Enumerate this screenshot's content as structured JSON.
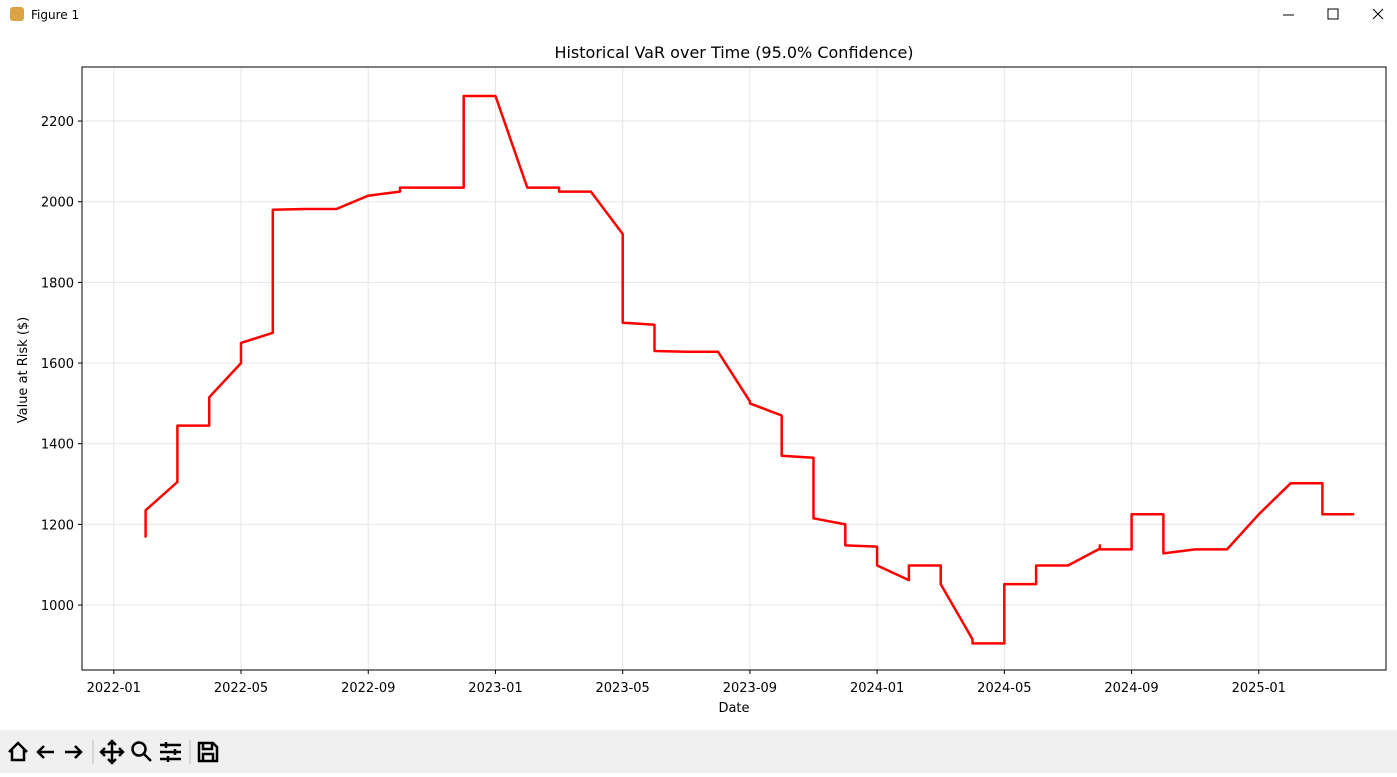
{
  "window": {
    "title": "Figure 1"
  },
  "chart_data": {
    "type": "line",
    "title": "Historical VaR over Time (95.0% Confidence)",
    "x_label": "Date",
    "y_label": "Value at Risk ($)",
    "color": "#ff0000",
    "grid": true,
    "x": [
      "2022-02",
      "2022-02",
      "2022-02",
      "2022-02",
      "2022-03",
      "2022-03",
      "2022-03",
      "2022-04",
      "2022-04",
      "2022-05",
      "2022-05",
      "2022-06",
      "2022-06",
      "2022-06",
      "2022-07",
      "2022-08",
      "2022-09",
      "2022-10",
      "2022-10",
      "2022-11",
      "2022-12",
      "2022-12",
      "2023-01",
      "2023-02",
      "2023-03",
      "2023-03",
      "2023-04",
      "2023-05",
      "2023-05",
      "2023-05",
      "2023-05",
      "2023-06",
      "2023-06",
      "2023-06",
      "2023-07",
      "2023-08",
      "2023-09",
      "2023-09",
      "2023-10",
      "2023-10",
      "2023-10",
      "2023-10",
      "2023-11",
      "2023-11",
      "2023-11",
      "2023-12",
      "2023-12",
      "2023-12",
      "2024-01",
      "2024-01",
      "2024-02",
      "2024-02",
      "2024-03",
      "2024-03",
      "2024-04",
      "2024-04",
      "2024-05",
      "2024-05",
      "2024-05",
      "2024-05",
      "2024-06",
      "2024-06",
      "2024-07",
      "2024-08",
      "2024-08",
      "2024-08",
      "2024-09",
      "2024-09",
      "2024-10",
      "2024-10",
      "2024-10",
      "2024-11",
      "2024-12",
      "2025-01",
      "2025-02",
      "2025-03",
      "2025-03",
      "2025-04"
    ],
    "values": [
      1235,
      1170,
      1220,
      1235,
      1305,
      1365,
      1445,
      1445,
      1515,
      1600,
      1650,
      1675,
      1690,
      1980,
      1982,
      1982,
      2015,
      2025,
      2035,
      2035,
      2035,
      2262,
      2262,
      2035,
      2035,
      2025,
      2025,
      1920,
      1850,
      1830,
      1700,
      1695,
      1690,
      1630,
      1628,
      1628,
      1505,
      1500,
      1470,
      1445,
      1395,
      1370,
      1365,
      1315,
      1215,
      1200,
      1180,
      1148,
      1145,
      1098,
      1062,
      1098,
      1098,
      1052,
      915,
      905,
      905,
      1052,
      915,
      1052,
      1052,
      1098,
      1098,
      1140,
      1148,
      1138,
      1138,
      1225,
      1225,
      1138,
      1128,
      1138,
      1138,
      1225,
      1302,
      1302,
      1225,
      1225
    ],
    "xlim": [
      "2021-12",
      "2025-05"
    ],
    "xticks": [
      "2022-01",
      "2022-05",
      "2022-09",
      "2023-01",
      "2023-05",
      "2023-09",
      "2024-01",
      "2024-05",
      "2024-09",
      "2025-01"
    ],
    "ylim": [
      839,
      2334
    ],
    "yticks": [
      1000,
      1200,
      1400,
      1600,
      1800,
      2000,
      2200
    ]
  }
}
